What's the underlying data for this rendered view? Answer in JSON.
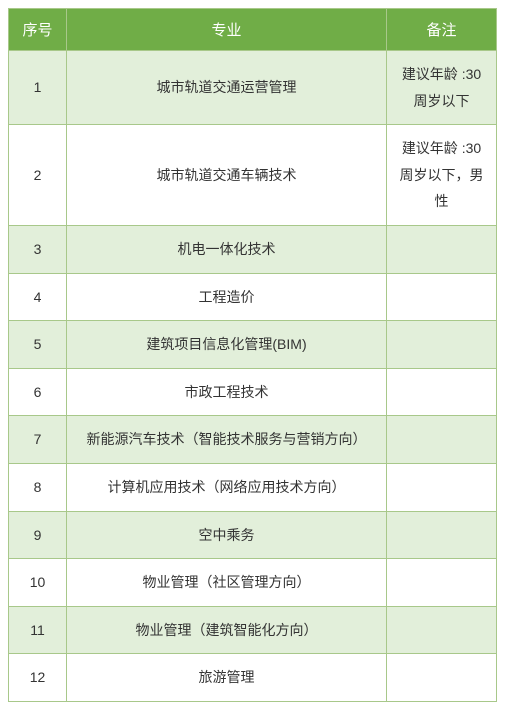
{
  "table": {
    "header_bg": "#70ad47",
    "header_text_color": "#ffffff",
    "row_odd_bg": "#e2efda",
    "row_even_bg": "#ffffff",
    "border_color": "#a8c88a",
    "columns": [
      {
        "key": "seq",
        "label": "序号"
      },
      {
        "key": "major",
        "label": "专业"
      },
      {
        "key": "note",
        "label": "备注"
      }
    ],
    "rows": [
      {
        "seq": "1",
        "major": "城市轨道交通运营管理",
        "note": "建议年龄 :30 周岁以下"
      },
      {
        "seq": "2",
        "major": "城市轨道交通车辆技术",
        "note": "建议年龄 :30 周岁以下，男性"
      },
      {
        "seq": "3",
        "major": "机电一体化技术",
        "note": ""
      },
      {
        "seq": "4",
        "major": "工程造价",
        "note": ""
      },
      {
        "seq": "5",
        "major": "建筑项目信息化管理(BIM)",
        "note": ""
      },
      {
        "seq": "6",
        "major": "市政工程技术",
        "note": ""
      },
      {
        "seq": "7",
        "major": "新能源汽车技术（智能技术服务与营销方向）",
        "note": ""
      },
      {
        "seq": "8",
        "major": "计算机应用技术（网络应用技术方向）",
        "note": ""
      },
      {
        "seq": "9",
        "major": "空中乘务",
        "note": ""
      },
      {
        "seq": "10",
        "major": "物业管理（社区管理方向）",
        "note": ""
      },
      {
        "seq": "11",
        "major": "物业管理（建筑智能化方向）",
        "note": ""
      },
      {
        "seq": "12",
        "major": "旅游管理",
        "note": ""
      }
    ]
  }
}
